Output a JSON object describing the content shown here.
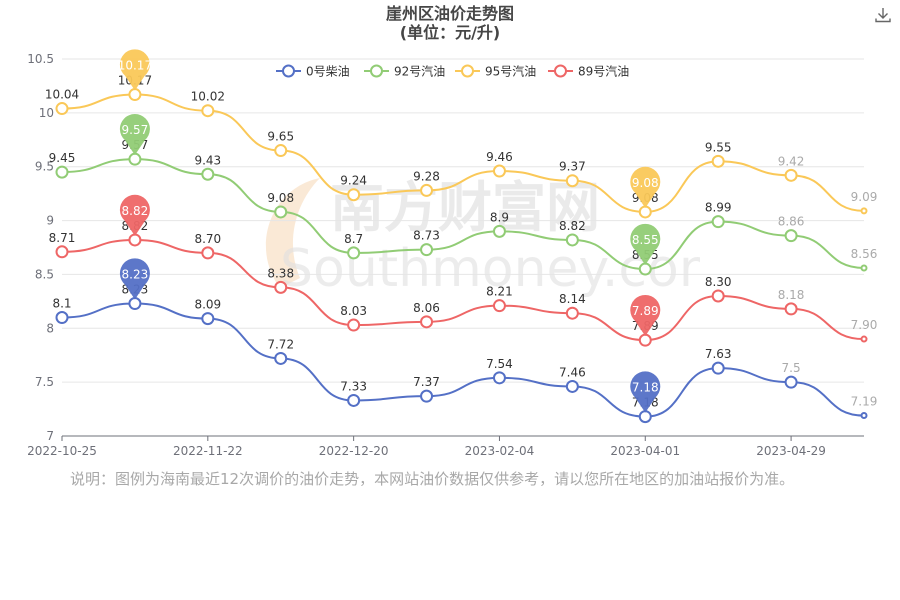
{
  "page": {
    "title_line1": "崖州区油价走势图",
    "title_line2": "(单位：元/升)",
    "note": "说明：图例为海南最近12次调价的油价走势，本网站油价数据仅供参考，请以您所在地区的加油站报价为准。",
    "watermark_line1": "南方财富网",
    "watermark_line2": "Southmoney.com"
  },
  "chart_data": {
    "type": "line",
    "ylim": [
      7,
      10.5
    ],
    "yticks": [
      "7",
      "7.5",
      "8",
      "8.5",
      "9",
      "9.5",
      "10",
      "10.5"
    ],
    "x_tick_labels": [
      {
        "index": 0,
        "label": "2022-10-25"
      },
      {
        "index": 2,
        "label": "2022-11-22"
      },
      {
        "index": 4,
        "label": "2022-12-20"
      },
      {
        "index": 6,
        "label": "2023-02-04"
      },
      {
        "index": 8,
        "label": "2023-04-01"
      },
      {
        "index": 10,
        "label": "2023-04-29"
      }
    ],
    "legend_position": "top-center",
    "grid": true,
    "series": [
      {
        "name": "0号柴油",
        "color": "#5470c6",
        "values": [
          8.1,
          8.23,
          8.09,
          7.72,
          7.33,
          7.37,
          7.54,
          7.46,
          7.18,
          7.63,
          7.5,
          7.19
        ],
        "labels": [
          "8.1",
          "8.23",
          "8.09",
          "7.72",
          "7.33",
          "7.37",
          "7.54",
          "7.46",
          "7.18",
          "7.63",
          "7.5",
          "7.19"
        ],
        "max_index": 1,
        "min_index": 8
      },
      {
        "name": "92号汽油",
        "color": "#91cc75",
        "values": [
          9.45,
          9.57,
          9.43,
          9.08,
          8.7,
          8.73,
          8.9,
          8.82,
          8.55,
          8.99,
          8.86,
          8.56
        ],
        "labels": [
          "9.45",
          "9.57",
          "9.43",
          "9.08",
          "8.7",
          "8.73",
          "8.9",
          "8.82",
          "8.55",
          "8.99",
          "8.86",
          "8.56"
        ],
        "max_index": 1,
        "min_index": 8
      },
      {
        "name": "95号汽油",
        "color": "#fac858",
        "values": [
          10.04,
          10.17,
          10.02,
          9.65,
          9.24,
          9.28,
          9.46,
          9.37,
          9.08,
          9.55,
          9.42,
          9.09
        ],
        "labels": [
          "10.04",
          "10.17",
          "10.02",
          "9.65",
          "9.24",
          "9.28",
          "9.46",
          "9.37",
          "9.08",
          "9.55",
          "9.42",
          "9.09"
        ],
        "max_index": 1,
        "min_index": 8
      },
      {
        "name": "89号汽油",
        "color": "#ee6666",
        "values": [
          8.71,
          8.82,
          8.7,
          8.38,
          8.03,
          8.06,
          8.21,
          8.14,
          7.89,
          8.3,
          8.18,
          7.9
        ],
        "labels": [
          "8.71",
          "8.82",
          "8.70",
          "8.38",
          "8.03",
          "8.06",
          "8.21",
          "8.14",
          "7.89",
          "8.30",
          "8.18",
          "7.90"
        ],
        "max_index": 1,
        "min_index": 8
      }
    ]
  }
}
